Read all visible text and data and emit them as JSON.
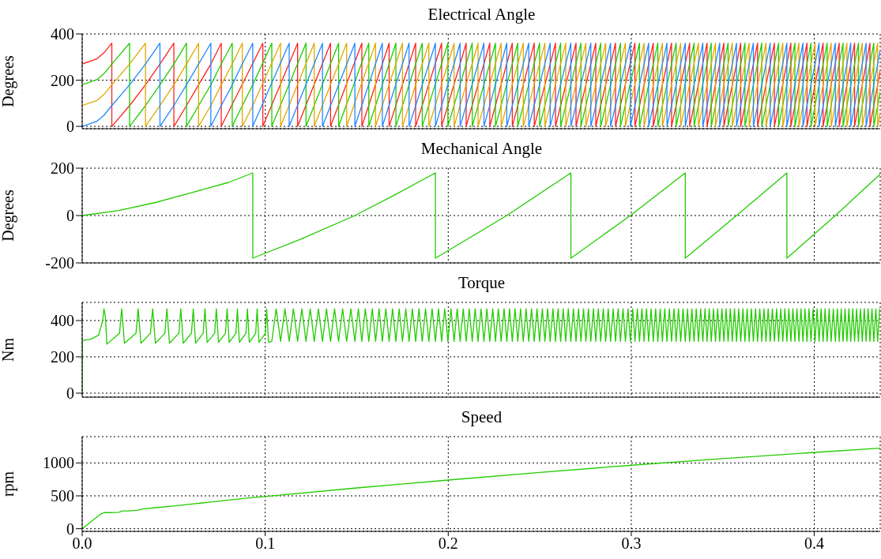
{
  "chart_data": [
    {
      "type": "line",
      "title": "Electrical Angle",
      "ylabel": "Degrees",
      "xlim": [
        0,
        0.436
      ],
      "xticks": [
        0,
        0.1,
        0.2,
        0.3,
        0.4
      ],
      "ylim": [
        -10,
        400
      ],
      "yticks": [
        0,
        200,
        400
      ],
      "grid": true,
      "tick_labels": "y",
      "series": [
        {
          "color": "#ff2020",
          "x": [
            0,
            0.008,
            0.012,
            0.0162,
            0.0162,
            0.0259,
            0.0346,
            0.0425,
            0.0501,
            0.0501,
            0.057,
            0.0636,
            0.0703,
            0.076,
            0.076,
            0.0987,
            0.0987,
            0.1177,
            0.1177,
            0.1357,
            0.1357,
            0.1528,
            0.1528,
            0.1677,
            0.1677,
            0.1822,
            0.1822,
            0.1964,
            0.1964,
            0.2098,
            0.2098,
            0.2227,
            0.2227,
            0.235,
            0.235,
            0.247,
            0.247,
            0.2586,
            0.2586,
            0.2698,
            0.2698,
            0.2806,
            0.2806,
            0.2914,
            0.2914,
            0.302,
            0.302,
            0.312,
            0.312,
            0.322,
            0.322,
            0.3319,
            0.3319,
            0.3414,
            0.3414,
            0.3506,
            0.3506,
            0.3598,
            0.3598,
            0.369,
            0.369,
            0.3782,
            0.3782,
            0.3872,
            0.3872,
            0.396,
            0.396,
            0.4048,
            0.4048,
            0.4136,
            0.4136,
            0.422,
            0.422,
            0.4304,
            0.4304,
            0.436
          ],
          "values": [
            270,
            292,
            319,
            360,
            0,
            90,
            180,
            270,
            360,
            0,
            90,
            180,
            270,
            360,
            0,
            360,
            0,
            360,
            0,
            360,
            0,
            360,
            0,
            360,
            0,
            360,
            0,
            360,
            0,
            360,
            0,
            360,
            0,
            360,
            0,
            360,
            0,
            360,
            0,
            360,
            0,
            360,
            0,
            360,
            0,
            360,
            0,
            360,
            0,
            360,
            0,
            360,
            0,
            360,
            0,
            360,
            0,
            360,
            0,
            360,
            0,
            360,
            0,
            360,
            0,
            360,
            0,
            360,
            0,
            360,
            0,
            360,
            0,
            360,
            0,
            240
          ]
        },
        {
          "color": "#22cc00",
          "x": [
            0,
            0.008,
            0.012,
            0.0162,
            0.0259,
            0.0259,
            0.0346,
            0.0425,
            0.0501,
            0.057,
            0.057,
            0.0636,
            0.0703,
            0.076,
            0.082,
            0.082,
            0.0875,
            0.0932,
            0.1036,
            0.1036,
            0.1223,
            0.1223,
            0.1401,
            0.1401,
            0.1566,
            0.1566,
            0.1714,
            0.1714,
            0.1858,
            0.1858,
            0.1998,
            0.1998,
            0.2131,
            0.2131,
            0.2258,
            0.2258,
            0.238,
            0.238,
            0.2499,
            0.2499,
            0.2614,
            0.2614,
            0.2725,
            0.2725,
            0.2833,
            0.2833,
            0.2941,
            0.2941,
            0.3045,
            0.3045,
            0.3145,
            0.3145,
            0.3245,
            0.3245,
            0.3343,
            0.3343,
            0.3437,
            0.3437,
            0.3529,
            0.3529,
            0.3621,
            0.3621,
            0.3713,
            0.3713,
            0.3805,
            0.3805,
            0.3894,
            0.3894,
            0.3982,
            0.3982,
            0.407,
            0.407,
            0.4157,
            0.4157,
            0.4241,
            0.4241,
            0.4325,
            0.4325,
            0.436
          ],
          "values": [
            180,
            202,
            229,
            270,
            360,
            0,
            90,
            180,
            270,
            360,
            0,
            90,
            180,
            270,
            360,
            0,
            90,
            180,
            360,
            0,
            360,
            0,
            360,
            0,
            360,
            0,
            360,
            0,
            360,
            0,
            360,
            0,
            360,
            0,
            360,
            0,
            360,
            0,
            360,
            0,
            360,
            0,
            360,
            0,
            360,
            0,
            360,
            0,
            360,
            0,
            360,
            0,
            360,
            0,
            360,
            0,
            360,
            0,
            360,
            0,
            360,
            0,
            360,
            0,
            360,
            0,
            360,
            0,
            360,
            0,
            360,
            0,
            360,
            0,
            360,
            0,
            360,
            0,
            150
          ]
        },
        {
          "color": "#e0a800",
          "x": [
            0,
            0.008,
            0.012,
            0.0162,
            0.0259,
            0.0346,
            0.0346,
            0.0425,
            0.0501,
            0.057,
            0.0636,
            0.0636,
            0.0703,
            0.076,
            0.082,
            0.0875,
            0.0875,
            0.0932,
            0.1084,
            0.1084,
            0.1268,
            0.1268,
            0.1445,
            0.1445,
            0.1603,
            0.1603,
            0.175,
            0.175,
            0.1894,
            0.1894,
            0.2032,
            0.2032,
            0.2163,
            0.2163,
            0.2289,
            0.2289,
            0.241,
            0.241,
            0.2528,
            0.2528,
            0.2642,
            0.2642,
            0.2752,
            0.2752,
            0.286,
            0.286,
            0.2968,
            0.2968,
            0.307,
            0.307,
            0.317,
            0.317,
            0.327,
            0.327,
            0.3367,
            0.3367,
            0.346,
            0.346,
            0.3552,
            0.3552,
            0.3644,
            0.3644,
            0.3736,
            0.3736,
            0.3828,
            0.3828,
            0.3916,
            0.3916,
            0.4004,
            0.4004,
            0.4092,
            0.4092,
            0.4178,
            0.4178,
            0.4262,
            0.4262,
            0.4346,
            0.4346,
            0.436
          ],
          "values": [
            90,
            112,
            139,
            180,
            270,
            360,
            0,
            90,
            180,
            270,
            360,
            0,
            90,
            180,
            270,
            360,
            0,
            90,
            360,
            0,
            360,
            0,
            360,
            0,
            360,
            0,
            360,
            0,
            360,
            0,
            360,
            0,
            360,
            0,
            360,
            0,
            360,
            0,
            360,
            0,
            360,
            0,
            360,
            0,
            360,
            0,
            360,
            0,
            360,
            0,
            360,
            0,
            360,
            0,
            360,
            0,
            360,
            0,
            360,
            0,
            360,
            0,
            360,
            0,
            360,
            0,
            360,
            0,
            360,
            0,
            360,
            0,
            360,
            0,
            360,
            0,
            360,
            0,
            60
          ]
        },
        {
          "color": "#2288ff",
          "x": [
            0,
            0.008,
            0.012,
            0.0162,
            0.0259,
            0.0346,
            0.0425,
            0.0425,
            0.0501,
            0.057,
            0.0636,
            0.0703,
            0.0703,
            0.076,
            0.082,
            0.0875,
            0.0932,
            0.0932,
            0.1131,
            0.1131,
            0.1313,
            0.1313,
            0.149,
            0.149,
            0.164,
            0.164,
            0.1786,
            0.1786,
            0.193,
            0.193,
            0.2065,
            0.2065,
            0.2195,
            0.2195,
            0.232,
            0.232,
            0.244,
            0.244,
            0.2557,
            0.2557,
            0.267,
            0.267,
            0.2779,
            0.2779,
            0.2887,
            0.2887,
            0.2995,
            0.2995,
            0.3095,
            0.3095,
            0.3195,
            0.3195,
            0.3295,
            0.3295,
            0.3391,
            0.3391,
            0.3483,
            0.3483,
            0.3575,
            0.3575,
            0.3667,
            0.3667,
            0.3759,
            0.3759,
            0.385,
            0.385,
            0.3938,
            0.3938,
            0.4026,
            0.4026,
            0.4115,
            0.4115,
            0.4199,
            0.4199,
            0.4283,
            0.4283,
            0.436
          ],
          "values": [
            0,
            22,
            49,
            90,
            180,
            270,
            360,
            0,
            90,
            180,
            270,
            360,
            0,
            90,
            180,
            270,
            360,
            0,
            360,
            0,
            360,
            0,
            360,
            0,
            360,
            0,
            360,
            0,
            360,
            0,
            360,
            0,
            360,
            0,
            360,
            0,
            360,
            0,
            360,
            0,
            360,
            0,
            360,
            0,
            360,
            0,
            360,
            0,
            360,
            0,
            360,
            0,
            360,
            0,
            360,
            0,
            360,
            0,
            360,
            0,
            360,
            0,
            360,
            0,
            360,
            0,
            360,
            0,
            360,
            0,
            360,
            0,
            360,
            0,
            360,
            0,
            330
          ]
        }
      ]
    },
    {
      "type": "line",
      "title": "Mechanical Angle",
      "ylabel": "Degrees",
      "xlim": [
        0,
        0.436
      ],
      "xticks": [
        0,
        0.1,
        0.2,
        0.3,
        0.4
      ],
      "ylim": [
        -200,
        200
      ],
      "yticks": [
        -200,
        0,
        200
      ],
      "grid": true,
      "tick_labels": "y",
      "color": "#22cc00",
      "x": [
        0,
        0.02,
        0.04,
        0.06,
        0.08,
        0.0932,
        0.0932,
        0.12,
        0.149,
        0.17,
        0.193,
        0.193,
        0.232,
        0.267,
        0.267,
        0.2995,
        0.3295,
        0.3295,
        0.3575,
        0.385,
        0.385,
        0.4115,
        0.436
      ],
      "values": [
        0,
        21,
        55,
        97,
        140,
        180,
        -180,
        -98,
        0,
        84,
        180,
        -180,
        0,
        180,
        -180,
        0,
        180,
        -180,
        0,
        180,
        -180,
        0,
        175
      ]
    },
    {
      "type": "line",
      "title": "Torque",
      "ylabel": "Nm",
      "xlim": [
        0,
        0.436
      ],
      "xticks": [
        0,
        0.1,
        0.2,
        0.3,
        0.4
      ],
      "ylim": [
        -22,
        500
      ],
      "yticks": [
        0,
        200,
        400
      ],
      "grid": true,
      "tick_labels": "y",
      "color": "#22cc00",
      "x": [
        0,
        0.0001,
        0.005,
        0.009,
        0.0112,
        0.0119,
        0.0127,
        0.0135,
        0.0204,
        0.0216,
        0.0231,
        0.0294,
        0.0306,
        0.0321,
        0.0373,
        0.0385,
        0.04,
        0.0452,
        0.0463,
        0.0477,
        0.0528,
        0.0539,
        0.0552,
        0.0597,
        0.0607,
        0.062,
        0.0661,
        0.0671,
        0.0683,
        0.0724,
        0.0733,
        0.0745,
        0.0783,
        0.0792,
        0.0803,
        0.084,
        0.0848,
        0.0859,
        0.0895,
        0.0903,
        0.0913,
        0.0948,
        0.0956,
        0.0966,
        0.1001,
        0.1008,
        0.1018,
        0.1036,
        0.106,
        0.1084,
        0.1108,
        0.1131,
        0.1154,
        0.1177,
        0.12,
        0.1223,
        0.1246,
        0.1268,
        0.1291,
        0.1313,
        0.1335,
        0.1357,
        0.1379,
        0.1401,
        0.1423,
        0.1445,
        0.1468,
        0.149,
        0.1509,
        0.1528,
        0.1547,
        0.1566,
        0.1585,
        0.1603,
        0.1622,
        0.164,
        0.1659,
        0.1677,
        0.1696,
        0.1714,
        0.1732,
        0.175,
        0.1768,
        0.1786,
        0.1804,
        0.1822,
        0.184,
        0.1858,
        0.1876,
        0.1894,
        0.1912,
        0.193,
        0.1947,
        0.1964,
        0.1981,
        0.1998,
        0.2015,
        0.2032,
        0.2049,
        0.2065,
        0.2082,
        0.2098,
        0.2115,
        0.2131,
        0.2147,
        0.2163,
        0.2179,
        0.2195,
        0.2211,
        0.2227,
        0.2243,
        0.2258,
        0.2274,
        0.2289,
        0.2305,
        0.232,
        0.2335,
        0.235,
        0.2365,
        0.238,
        0.2395,
        0.241,
        0.2425,
        0.244,
        0.2455,
        0.247,
        0.2485,
        0.2499,
        0.2514,
        0.2528,
        0.2543,
        0.2557,
        0.2572,
        0.2586,
        0.26,
        0.2614,
        0.2628,
        0.2642,
        0.2656,
        0.267,
        0.2684,
        0.2698,
        0.2712,
        0.2725,
        0.2739,
        0.2752,
        0.2766,
        0.2779,
        0.2793,
        0.2806,
        0.282,
        0.2833,
        0.2847,
        0.286,
        0.2874,
        0.2887,
        0.2901,
        0.2914,
        0.2928,
        0.2941,
        0.2955,
        0.2968,
        0.2982,
        0.2995,
        0.3008,
        0.302,
        0.3033,
        0.3045,
        0.3058,
        0.307,
        0.3083,
        0.3095,
        0.3108,
        0.312,
        0.3133,
        0.3145,
        0.3158,
        0.317,
        0.3183,
        0.3195,
        0.3208,
        0.322,
        0.3233,
        0.3245,
        0.3258,
        0.327,
        0.3283,
        0.3295,
        0.3307,
        0.3319,
        0.3331,
        0.3343,
        0.3355,
        0.3367,
        0.3379,
        0.3391,
        0.3403,
        0.3414,
        0.3426,
        0.3437,
        0.3449,
        0.346,
        0.3472,
        0.3483,
        0.3495,
        0.3506,
        0.3518,
        0.3529,
        0.3541,
        0.3552,
        0.3564,
        0.3575,
        0.3587,
        0.3598,
        0.361,
        0.3621,
        0.3633,
        0.3644,
        0.3656,
        0.3667,
        0.3679,
        0.369,
        0.3702,
        0.3713,
        0.3725,
        0.3736,
        0.3748,
        0.3759,
        0.3771,
        0.3782,
        0.3794,
        0.3805,
        0.3817,
        0.3828,
        0.3839,
        0.385,
        0.3861,
        0.3872,
        0.3883,
        0.3894,
        0.3905,
        0.3916,
        0.3927,
        0.3938,
        0.3949,
        0.396,
        0.3971,
        0.3982,
        0.3993,
        0.4004,
        0.4015,
        0.4026,
        0.4037,
        0.4048,
        0.4059,
        0.407,
        0.4081,
        0.4092,
        0.4104,
        0.4115,
        0.4126,
        0.4136,
        0.4147,
        0.4157,
        0.4168,
        0.4178,
        0.4189,
        0.4199,
        0.421,
        0.422,
        0.4231,
        0.4241,
        0.4252,
        0.4262,
        0.4273,
        0.4283,
        0.4294,
        0.4304,
        0.4315,
        0.4325,
        0.4336,
        0.4346,
        0.4357
      ],
      "values": [
        0,
        290,
        298,
        320,
        400,
        465,
        420,
        270,
        330,
        465,
        275,
        330,
        465,
        275,
        330,
        465,
        275,
        330,
        465,
        275,
        330,
        465,
        275,
        330,
        465,
        275,
        330,
        465,
        280,
        330,
        465,
        280,
        330,
        465,
        280,
        330,
        465,
        280,
        330,
        465,
        280,
        330,
        465,
        280,
        330,
        465,
        280,
        285,
        465,
        285,
        465,
        285,
        465,
        285,
        465,
        285,
        465,
        285,
        465,
        285,
        465,
        285,
        465,
        285,
        465,
        285,
        465,
        285,
        465,
        285,
        465,
        285,
        465,
        285,
        465,
        285,
        465,
        285,
        465,
        285,
        465,
        285,
        465,
        285,
        465,
        285,
        465,
        285,
        465,
        285,
        465,
        285,
        465,
        285,
        465,
        285,
        465,
        285,
        465,
        285,
        465,
        285,
        465,
        285,
        465,
        285,
        465,
        285,
        465,
        285,
        465,
        285,
        465,
        285,
        465,
        285,
        465,
        285,
        465,
        285,
        465,
        285,
        465,
        285,
        465,
        285,
        465,
        285,
        465,
        285,
        465,
        285,
        465,
        285,
        465,
        285,
        465,
        285,
        465,
        285,
        465,
        285,
        465,
        285,
        465,
        285,
        465,
        285,
        465,
        285,
        465,
        285,
        465,
        285,
        465,
        285,
        465,
        285,
        465,
        285,
        465,
        285,
        465,
        285,
        465,
        285,
        465,
        285,
        465,
        285,
        465,
        285,
        465,
        285,
        465,
        285,
        465,
        285,
        465,
        285,
        465,
        285,
        465,
        285,
        465,
        285,
        465,
        285,
        465,
        285,
        465,
        285,
        465,
        285,
        465,
        285,
        465,
        285,
        465,
        285,
        465,
        285,
        465,
        285,
        465,
        285,
        465,
        285,
        465,
        285,
        465,
        285,
        465,
        285,
        465,
        285,
        465,
        285,
        465,
        285,
        465,
        285,
        465,
        285,
        465,
        285,
        465,
        285,
        465,
        285,
        465,
        285,
        465,
        285,
        465,
        285,
        465,
        285,
        465,
        285,
        465,
        285,
        465,
        285,
        465,
        285,
        465,
        285,
        465,
        285,
        465,
        285,
        465,
        285,
        465,
        285,
        465,
        285,
        465,
        285,
        465,
        285,
        465,
        285,
        465,
        285,
        465,
        285,
        465,
        285,
        465,
        285,
        465,
        285,
        465,
        285,
        465,
        285,
        465,
        285,
        465,
        285,
        465
      ]
    },
    {
      "type": "line",
      "title": "Speed",
      "ylabel": "rpm",
      "xlim": [
        0,
        0.436
      ],
      "xticks": [
        {
          "value": 0,
          "label": "0.0"
        },
        0.1,
        0.2,
        0.3,
        0.4
      ],
      "ylim": [
        -40,
        1400
      ],
      "yticks": [
        0,
        500,
        1000
      ],
      "grid": true,
      "color": "#22cc00",
      "x": [
        0,
        0.005,
        0.01,
        0.012,
        0.015,
        0.02,
        0.022,
        0.025,
        0.03,
        0.033,
        0.04,
        0.05,
        0.06,
        0.07,
        0.08,
        0.09,
        0.1,
        0.15,
        0.2,
        0.25,
        0.3,
        0.35,
        0.4,
        0.436
      ],
      "values": [
        0,
        110,
        220,
        245,
        245,
        250,
        270,
        270,
        280,
        300,
        320,
        345,
        375,
        405,
        435,
        465,
        490,
        620,
        740,
        855,
        965,
        1065,
        1160,
        1225
      ]
    }
  ]
}
